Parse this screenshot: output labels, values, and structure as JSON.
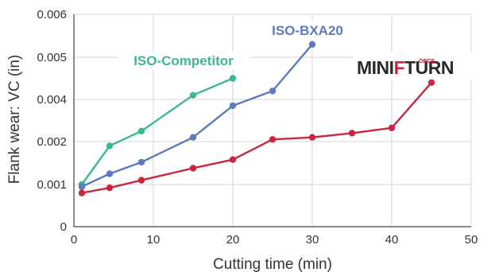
{
  "colors": {
    "competitor": "#3cb88e",
    "bxa20": "#5b7abf",
    "miniforce": "#cc2540",
    "grid": "#d5d5d5",
    "axis": "#444444",
    "logo_dark": "#2a2a2a"
  },
  "logo": {
    "part_mini": "MINI",
    "part_f": "F",
    "part_orce": "ORCE",
    "part_turn": "TURN"
  },
  "chart_data": {
    "type": "line",
    "xlabel": "Cutting time (min)",
    "ylabel": "Flank wear: VC (in)",
    "xlim": [
      0,
      50
    ],
    "x_ticks": [
      "0",
      "10",
      "20",
      "30",
      "40",
      "50"
    ],
    "y_ticks": [
      "0",
      "0.001",
      "0.002",
      "0.004",
      "0.005",
      "0.006"
    ],
    "grid": true,
    "series": [
      {
        "name": "ISO-Competitor",
        "color_key": "competitor",
        "x": [
          1,
          4.5,
          8.5,
          15,
          20
        ],
        "y": [
          0.001,
          0.0019,
          0.0025,
          0.0041,
          0.0045
        ]
      },
      {
        "name": "ISO-BXA20",
        "color_key": "bxa20",
        "x": [
          1,
          4.5,
          8.5,
          15,
          20,
          25,
          30
        ],
        "y": [
          0.00095,
          0.00125,
          0.00152,
          0.0022,
          0.0037,
          0.0042,
          0.0053
        ]
      },
      {
        "name": "",
        "color_key": "miniforce",
        "x": [
          1,
          4.5,
          8.5,
          15,
          20,
          25,
          30,
          35,
          40,
          45
        ],
        "y": [
          0.0008,
          0.00092,
          0.0011,
          0.00138,
          0.00158,
          0.0021,
          0.0022,
          0.0024,
          0.00265,
          0.0044
        ]
      }
    ]
  }
}
